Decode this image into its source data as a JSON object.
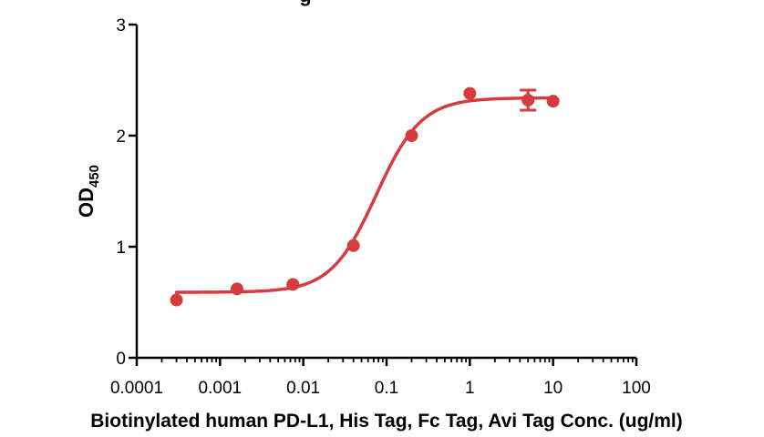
{
  "chart_data": {
    "type": "scatter",
    "title": "",
    "top_title_fragment": "g",
    "xlabel": "Biotinylated human PD-L1, His Tag, Fc Tag, Avi Tag Conc. (ug/ml)",
    "ylabel_main": "OD",
    "ylabel_sub": "450",
    "x_scale": "log",
    "xlim": [
      0.0001,
      100
    ],
    "ylim": [
      0,
      3
    ],
    "x_ticks": [
      0.0001,
      0.001,
      0.01,
      0.1,
      1,
      10,
      100
    ],
    "x_tick_labels": [
      "0.0001",
      "0.001",
      "0.01",
      "0.1",
      "1",
      "10",
      "100"
    ],
    "y_ticks": [
      0,
      1,
      2,
      3
    ],
    "y_tick_labels": [
      "0",
      "1",
      "2",
      "3"
    ],
    "grid": false,
    "legend": "none",
    "color": "#d63c3f",
    "series": [
      {
        "points": [
          {
            "x": 0.0003,
            "y": 0.52,
            "err": 0
          },
          {
            "x": 0.0016,
            "y": 0.62,
            "err": 0
          },
          {
            "x": 0.0075,
            "y": 0.66,
            "err": 0
          },
          {
            "x": 0.04,
            "y": 1.01,
            "err": 0
          },
          {
            "x": 0.2,
            "y": 2.0,
            "err": 0
          },
          {
            "x": 1,
            "y": 2.38,
            "err": 0
          },
          {
            "x": 5,
            "y": 2.32,
            "err": 0.09
          },
          {
            "x": 10,
            "y": 2.31,
            "err": 0
          }
        ]
      }
    ],
    "fit": {
      "model": "4PL",
      "bottom": 0.59,
      "top": 2.34,
      "ec50": 0.075,
      "hill": 1.6,
      "x_range": [
        0.0003,
        10
      ]
    }
  }
}
